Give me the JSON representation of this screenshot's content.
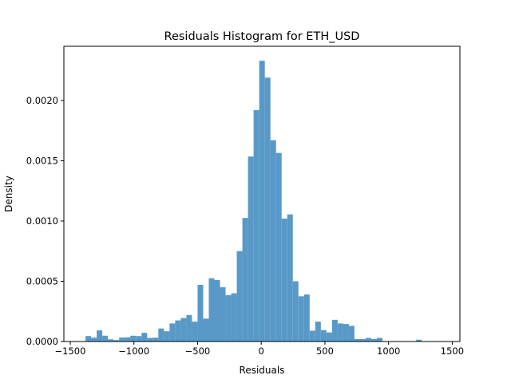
{
  "chart_data": {
    "type": "histogram",
    "title": "Residuals Histogram for ETH_USD",
    "xlabel": "Residuals",
    "ylabel": "Density",
    "xlim": [
      -1550,
      1560
    ],
    "ylim": [
      0,
      0.00245
    ],
    "x_ticks": [
      -1500,
      -1000,
      -500,
      0,
      500,
      1000,
      1500
    ],
    "x_tick_labels": [
      "−1500",
      "−1000",
      "−500",
      "0",
      "500",
      "1000",
      "1500"
    ],
    "y_ticks": [
      0,
      0.0005,
      0.001,
      0.0015,
      0.002
    ],
    "y_tick_labels": [
      "0.0000",
      "0.0005",
      "0.0010",
      "0.0015",
      "0.0020"
    ],
    "grid": false,
    "bar_color": "#5899c8",
    "bin_start": -1380,
    "bin_width": 44,
    "densities": [
      4.5e-05,
      3.2e-05,
      9.2e-05,
      4.8e-05,
      1.8e-05,
      1.2e-05,
      3.3e-05,
      3.5e-05,
      4.8e-05,
      4.5e-05,
      7.2e-05,
      3e-05,
      3.2e-05,
      0.000108,
      8.5e-05,
      0.00015,
      0.000175,
      0.000195,
      0.00022,
      0.000165,
      0.00047,
      0.00019,
      0.000525,
      0.00051,
      0.00045,
      0.000385,
      0.0004,
      0.00075,
      0.001025,
      0.001535,
      0.00192,
      0.00233,
      0.00219,
      0.00167,
      0.001565,
      0.00102,
      0.001055,
      0.0005,
      0.000375,
      0.00039,
      9e-05,
      0.000165,
      9.5e-05,
      7.5e-05,
      0.00018,
      0.00015,
      0.000145,
      0.00013,
      2e-05,
      2e-05,
      3e-05,
      2e-05,
      3e-05,
      0.0,
      0.0,
      0.0,
      0.0,
      0.0,
      0.0,
      1.5e-05
    ]
  }
}
